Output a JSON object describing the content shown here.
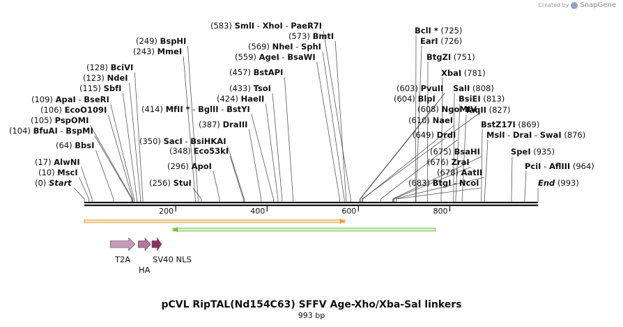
{
  "header": {
    "credit_text": "Created by",
    "brand": "SnapGene",
    "brand_icon": "snapgene-logo-icon"
  },
  "map": {
    "title": "pCVL RipTAL(Nd154C63) SFFV Age-Xho/Xba-Sal linkers",
    "length_label": "993 bp",
    "total_bp": 993,
    "ruler_ticks": [
      {
        "pos": 200,
        "label": "200"
      },
      {
        "pos": 400,
        "label": "400"
      },
      {
        "pos": 600,
        "label": "600"
      },
      {
        "pos": 800,
        "label": "800"
      }
    ],
    "sites": [
      {
        "pos": 0,
        "pos_label": "(0)",
        "names": [
          "Start"
        ],
        "italic": true
      },
      {
        "pos": 10,
        "pos_label": "(10)",
        "names": [
          "MscI"
        ]
      },
      {
        "pos": 17,
        "pos_label": "(17)",
        "names": [
          "AlwNI"
        ]
      },
      {
        "pos": 64,
        "pos_label": "(64)",
        "names": [
          "BbsI"
        ]
      },
      {
        "pos": 104,
        "pos_label": "(104)",
        "names": [
          "BfuAI",
          "BspMI"
        ]
      },
      {
        "pos": 105,
        "pos_label": "(105)",
        "names": [
          "PspOMI"
        ]
      },
      {
        "pos": 106,
        "pos_label": "(106)",
        "names": [
          "EcoO109I"
        ]
      },
      {
        "pos": 109,
        "pos_label": "(109)",
        "names": [
          "ApaI",
          "BseRI"
        ]
      },
      {
        "pos": 115,
        "pos_label": "(115)",
        "names": [
          "SbfI"
        ]
      },
      {
        "pos": 123,
        "pos_label": "(123)",
        "names": [
          "NdeI"
        ]
      },
      {
        "pos": 128,
        "pos_label": "(128)",
        "names": [
          "BciVI"
        ]
      },
      {
        "pos": 243,
        "pos_label": "(243)",
        "names": [
          "MmeI"
        ]
      },
      {
        "pos": 249,
        "pos_label": "(249)",
        "names": [
          "BspHI"
        ]
      },
      {
        "pos": 256,
        "pos_label": "(256)",
        "names": [
          "StuI"
        ]
      },
      {
        "pos": 296,
        "pos_label": "(296)",
        "names": [
          "ApoI"
        ]
      },
      {
        "pos": 348,
        "pos_label": "(348)",
        "names": [
          "Eco53kI"
        ]
      },
      {
        "pos": 350,
        "pos_label": "(350)",
        "names": [
          "SacI",
          "BsiHKAI"
        ]
      },
      {
        "pos": 387,
        "pos_label": "(387)",
        "names": [
          "DraIII"
        ]
      },
      {
        "pos": 414,
        "pos_label": "(414)",
        "names": [
          "MfII *",
          "BglII",
          "BstYI"
        ]
      },
      {
        "pos": 424,
        "pos_label": "(424)",
        "names": [
          "HaeII"
        ]
      },
      {
        "pos": 433,
        "pos_label": "(433)",
        "names": [
          "TsoI"
        ]
      },
      {
        "pos": 457,
        "pos_label": "(457)",
        "names": [
          "BstAPI"
        ]
      },
      {
        "pos": 559,
        "pos_label": "(559)",
        "names": [
          "AgeI",
          "BsaWI"
        ]
      },
      {
        "pos": 569,
        "pos_label": "(569)",
        "names": [
          "NheI",
          "SphI"
        ]
      },
      {
        "pos": 573,
        "pos_label": "(573)",
        "names": [
          "BmtI"
        ]
      },
      {
        "pos": 583,
        "pos_label": "(583)",
        "names": [
          "SmlI",
          "XhoI",
          "PaeR7I"
        ]
      },
      {
        "pos": 603,
        "pos_label": "(603)",
        "names": [
          "PvuII"
        ]
      },
      {
        "pos": 604,
        "pos_label": "(604)",
        "names": [
          "BlpI"
        ]
      },
      {
        "pos": 608,
        "pos_label": "(608)",
        "names": [
          "NgoMIV"
        ]
      },
      {
        "pos": 610,
        "pos_label": "(610)",
        "names": [
          "NaeI"
        ]
      },
      {
        "pos": 649,
        "pos_label": "(649)",
        "names": [
          "DrdI"
        ]
      },
      {
        "pos": 675,
        "pos_label": "(675)",
        "names": [
          "BsaHI"
        ]
      },
      {
        "pos": 676,
        "pos_label": "(676)",
        "names": [
          "ZraI"
        ]
      },
      {
        "pos": 678,
        "pos_label": "(678)",
        "names": [
          "AatII"
        ]
      },
      {
        "pos": 683,
        "pos_label": "(683)",
        "names": [
          "BtgI",
          "NcoI"
        ]
      },
      {
        "pos": 725,
        "pos_label": "(725)",
        "names": [
          "BclI *"
        ]
      },
      {
        "pos": 726,
        "pos_label": "(726)",
        "names": [
          "EarI"
        ]
      },
      {
        "pos": 751,
        "pos_label": "(751)",
        "names": [
          "BtgZI"
        ]
      },
      {
        "pos": 781,
        "pos_label": "(781)",
        "names": [
          "XbaI"
        ]
      },
      {
        "pos": 808,
        "pos_label": "(808)",
        "names": [
          "SalI"
        ]
      },
      {
        "pos": 813,
        "pos_label": "(813)",
        "names": [
          "BsiEI"
        ]
      },
      {
        "pos": 827,
        "pos_label": "(827)",
        "names": [
          "TaqII"
        ]
      },
      {
        "pos": 869,
        "pos_label": "(869)",
        "names": [
          "BstZ17I"
        ]
      },
      {
        "pos": 876,
        "pos_label": "(876)",
        "names": [
          "MslI",
          "DraI",
          "SwaI"
        ]
      },
      {
        "pos": 935,
        "pos_label": "(935)",
        "names": [
          "SpeI"
        ]
      },
      {
        "pos": 964,
        "pos_label": "(964)",
        "names": [
          "PciI",
          "AflIII"
        ]
      },
      {
        "pos": 993,
        "pos_label": "(993)",
        "names": [
          "End"
        ],
        "italic": true
      }
    ],
    "orfs": [
      {
        "start": 0,
        "end": 570,
        "direction": "forward",
        "color": "#e8a33a",
        "fill": "#f6e6c2"
      },
      {
        "start": 194,
        "end": 768,
        "direction": "reverse",
        "color": "#6fc03a",
        "fill": "#e3f4d6"
      }
    ],
    "features": [
      {
        "label": "T2A",
        "start": 57,
        "end": 111,
        "color": "#c89abb",
        "label_row": 0
      },
      {
        "label": "HA",
        "start": 118,
        "end": 145,
        "color": "#b2769f",
        "label_row": 1
      },
      {
        "label": "SV40 NLS",
        "start": 148,
        "end": 169,
        "color": "#8e2f62",
        "label_row": 0
      }
    ]
  }
}
